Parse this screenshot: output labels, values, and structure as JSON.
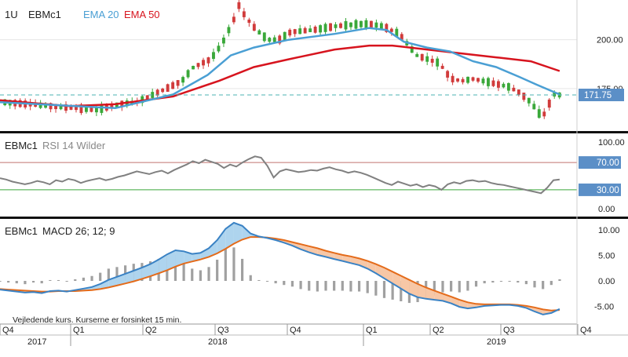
{
  "header": {
    "period": "1U",
    "symbol": "EBMc1",
    "ema20_label": "EMA 20",
    "ema50_label": "EMA 50"
  },
  "rsi_panel": {
    "symbol": "EBMc1",
    "title": "RSI 14 Wilder"
  },
  "macd_panel": {
    "symbol": "EBMc1",
    "title": "MACD 26; 12; 9"
  },
  "disclaimer": "Vejledende kurs. Kurserne er forsinket 15 min.",
  "colors": {
    "up_candle": "#3aa83a",
    "down_candle": "#d13b3b",
    "ema20": "#4a9fd4",
    "ema50": "#d7141e",
    "rsi_line": "#808080",
    "rsi_overbought": "#c0736f",
    "rsi_oversold": "#3aa83a",
    "macd_line": "#3a82c4",
    "signal_line": "#e46b1a",
    "macd_fill_above": "#aed4ee",
    "macd_fill_below": "#f7c7a6",
    "histogram": "#a0a0a0",
    "last_price_tag": "#5b8fc7",
    "last_price_line": "#4bb3b3"
  },
  "last_price": "171.75",
  "chart_data": [
    {
      "type": "candlestick",
      "title": "EBMc1",
      "series_labels": [
        "EMA 20",
        "EMA 50"
      ],
      "y_ticks": [
        "200.00",
        "175.00"
      ],
      "last_price": 171.75,
      "close_path": [
        [
          0,
          168
        ],
        [
          0.04,
          167
        ],
        [
          0.08,
          166
        ],
        [
          0.12,
          165
        ],
        [
          0.16,
          164
        ],
        [
          0.2,
          167
        ],
        [
          0.23,
          168
        ],
        [
          0.26,
          172
        ],
        [
          0.29,
          176
        ],
        [
          0.31,
          179
        ],
        [
          0.33,
          186
        ],
        [
          0.36,
          190
        ],
        [
          0.38,
          198
        ],
        [
          0.4,
          210
        ],
        [
          0.41,
          218
        ],
        [
          0.42,
          212
        ],
        [
          0.44,
          205
        ],
        [
          0.46,
          200
        ],
        [
          0.48,
          200
        ],
        [
          0.5,
          204
        ],
        [
          0.54,
          205
        ],
        [
          0.58,
          207
        ],
        [
          0.62,
          208
        ],
        [
          0.64,
          208
        ],
        [
          0.66,
          207
        ],
        [
          0.69,
          203
        ],
        [
          0.72,
          192
        ],
        [
          0.74,
          190
        ],
        [
          0.76,
          188
        ],
        [
          0.78,
          180
        ],
        [
          0.8,
          179
        ],
        [
          0.82,
          180
        ],
        [
          0.85,
          178
        ],
        [
          0.88,
          176
        ],
        [
          0.9,
          173
        ],
        [
          0.92,
          168
        ],
        [
          0.94,
          160
        ],
        [
          0.96,
          172
        ],
        [
          0.97,
          171.75
        ]
      ],
      "ema20_path": [
        [
          0,
          168
        ],
        [
          0.2,
          165
        ],
        [
          0.3,
          172
        ],
        [
          0.36,
          182
        ],
        [
          0.4,
          192
        ],
        [
          0.44,
          196
        ],
        [
          0.5,
          200
        ],
        [
          0.58,
          203
        ],
        [
          0.64,
          206
        ],
        [
          0.67,
          205
        ],
        [
          0.7,
          199
        ],
        [
          0.74,
          196
        ],
        [
          0.78,
          194
        ],
        [
          0.82,
          189
        ],
        [
          0.86,
          186
        ],
        [
          0.9,
          181
        ],
        [
          0.93,
          177
        ],
        [
          0.97,
          172
        ]
      ],
      "ema50_path": [
        [
          0,
          169
        ],
        [
          0.12,
          166
        ],
        [
          0.2,
          167
        ],
        [
          0.3,
          171
        ],
        [
          0.38,
          179
        ],
        [
          0.44,
          186
        ],
        [
          0.5,
          190
        ],
        [
          0.58,
          195
        ],
        [
          0.64,
          197
        ],
        [
          0.68,
          197
        ],
        [
          0.74,
          195
        ],
        [
          0.8,
          193
        ],
        [
          0.86,
          191
        ],
        [
          0.92,
          189
        ],
        [
          0.97,
          184
        ]
      ]
    },
    {
      "type": "line",
      "title": "RSI 14 Wilder",
      "y_ticks": [
        "100.00",
        "70.00",
        "30.00",
        "0.00"
      ],
      "overbought": 70,
      "oversold": 30,
      "ylim": [
        0,
        100
      ],
      "values": [
        47,
        45,
        42,
        40,
        38,
        40,
        43,
        41,
        38,
        44,
        42,
        46,
        44,
        40,
        43,
        45,
        47,
        44,
        46,
        49,
        51,
        54,
        57,
        55,
        53,
        56,
        58,
        54,
        59,
        63,
        67,
        72,
        69,
        74,
        71,
        68,
        62,
        67,
        64,
        70,
        75,
        79,
        77,
        65,
        48,
        57,
        60,
        58,
        56,
        57,
        59,
        58,
        61,
        63,
        60,
        58,
        55,
        57,
        55,
        52,
        48,
        44,
        40,
        37,
        42,
        39,
        36,
        38,
        34,
        37,
        35,
        30,
        38,
        41,
        39,
        43,
        44,
        42,
        43,
        40,
        38,
        37,
        35,
        33,
        31,
        29,
        27,
        25,
        33,
        44,
        45
      ]
    },
    {
      "type": "line",
      "title": "MACD 26; 12; 9",
      "y_ticks": [
        "10.00",
        "5.00",
        "0.00",
        "-5.00"
      ],
      "ylim": [
        -7.5,
        12
      ],
      "macd": [
        -1.7,
        -1.9,
        -2.1,
        -2.3,
        -2.2,
        -2.4,
        -2.0,
        -1.9,
        -2.1,
        -1.8,
        -1.5,
        -1.2,
        -0.6,
        0.2,
        0.8,
        1.4,
        2.0,
        2.6,
        3.3,
        4.2,
        5.2,
        6.0,
        5.8,
        5.3,
        5.5,
        6.4,
        8.0,
        10.2,
        11.4,
        10.8,
        9.3,
        8.7,
        8.4,
        8.0,
        7.5,
        6.9,
        6.2,
        5.6,
        5.1,
        4.7,
        4.3,
        3.9,
        3.5,
        3.1,
        2.4,
        1.5,
        0.5,
        -0.5,
        -1.5,
        -2.5,
        -3.2,
        -3.5,
        -3.7,
        -3.9,
        -4.4,
        -5.1,
        -5.4,
        -5.2,
        -4.9,
        -4.8,
        -4.7,
        -4.7,
        -4.9,
        -5.3,
        -6.0,
        -6.6,
        -6.3,
        -5.5
      ],
      "signal": [
        -1.6,
        -1.7,
        -1.8,
        -1.9,
        -2.0,
        -2.1,
        -2.1,
        -2.0,
        -2.0,
        -2.0,
        -1.9,
        -1.8,
        -1.6,
        -1.3,
        -0.9,
        -0.5,
        -0.1,
        0.4,
        0.9,
        1.5,
        2.1,
        2.8,
        3.4,
        3.8,
        4.2,
        4.7,
        5.4,
        6.3,
        7.3,
        8.1,
        8.6,
        8.6,
        8.5,
        8.3,
        8.0,
        7.6,
        7.2,
        6.8,
        6.4,
        5.9,
        5.5,
        5.1,
        4.8,
        4.4,
        3.9,
        3.3,
        2.6,
        1.8,
        1.0,
        0.2,
        -0.6,
        -1.3,
        -1.9,
        -2.5,
        -3.1,
        -3.7,
        -4.2,
        -4.5,
        -4.6,
        -4.6,
        -4.6,
        -4.6,
        -4.7,
        -4.9,
        -5.2,
        -5.6,
        -5.8,
        -5.7
      ]
    }
  ],
  "x_axis": {
    "quarters": [
      "Q4",
      "Q1",
      "Q2",
      "Q3",
      "Q4",
      "Q1",
      "Q2",
      "Q3",
      "Q4"
    ],
    "years": [
      "2017",
      "2018",
      "2019"
    ]
  }
}
